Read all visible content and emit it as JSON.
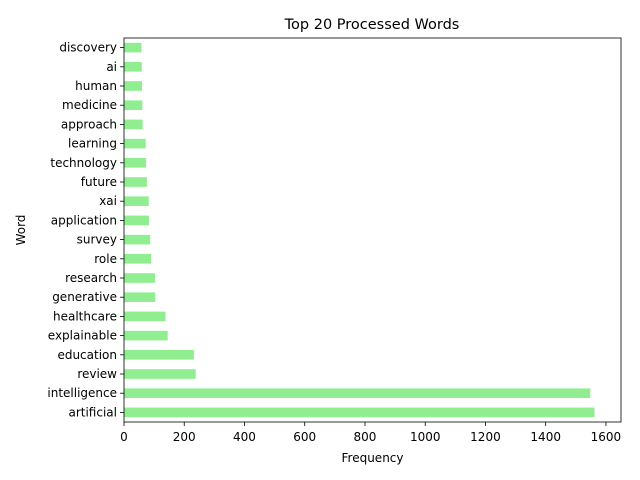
{
  "chart_data": {
    "type": "bar",
    "orientation": "horizontal",
    "title": "Top 20 Processed Words",
    "xlabel": "Frequency",
    "ylabel": "Word",
    "xlim": [
      0,
      1650
    ],
    "xticks": [
      0,
      200,
      400,
      600,
      800,
      1000,
      1200,
      1400,
      1600
    ],
    "grid": false,
    "bar_color": "#90EE90",
    "categories": [
      "artificial",
      "intelligence",
      "review",
      "education",
      "explainable",
      "healthcare",
      "generative",
      "research",
      "role",
      "survey",
      "application",
      "xai",
      "future",
      "technology",
      "learning",
      "approach",
      "medicine",
      "human",
      "ai",
      "discovery"
    ],
    "values": [
      1562,
      1548,
      238,
      232,
      145,
      138,
      104,
      103,
      90,
      87,
      83,
      82,
      76,
      73,
      72,
      62,
      61,
      60,
      59,
      58
    ]
  }
}
